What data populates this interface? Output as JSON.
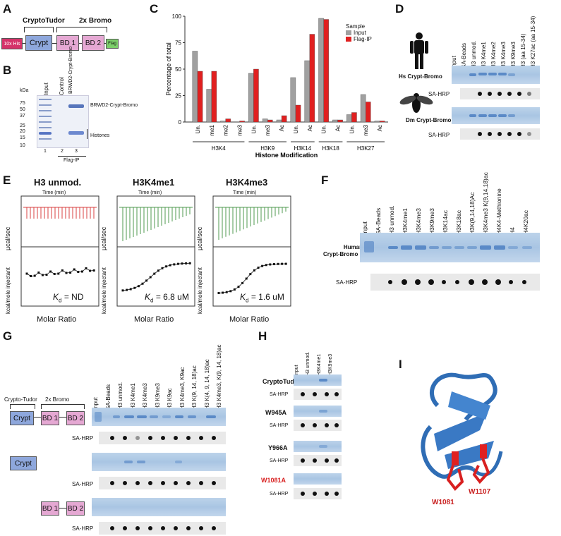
{
  "panel_letters": [
    "A",
    "B",
    "C",
    "D",
    "E",
    "F",
    "G",
    "H",
    "I"
  ],
  "a": {
    "header_left": "CryptoTudor",
    "header_right": "2x Bromo",
    "domains": [
      "10x His",
      "Crypt",
      "BD 1",
      "BD 2",
      "Flag"
    ]
  },
  "b": {
    "kda": "kDa",
    "markers": [
      "75",
      "50",
      "37",
      "25",
      "20",
      "15",
      "10"
    ],
    "lanes": [
      "Input",
      "Control",
      "BRWD2-Crypt-Bromo"
    ],
    "lane_numbers": [
      "1",
      "2",
      "3"
    ],
    "band_labels": [
      "BRWD2-Crypt-Bromo",
      "Histones"
    ],
    "footer": "Flag-IP"
  },
  "c": {
    "legend_title": "Sample",
    "legend": [
      "Input",
      "Flag-IP"
    ]
  },
  "chart_data": {
    "type": "bar",
    "title": "",
    "xlabel": "Histone Modification",
    "ylabel": "Percentage of total",
    "ylim": [
      0,
      100
    ],
    "yticks": [
      "0",
      "25",
      "50",
      "75",
      "100"
    ],
    "categories": [
      "Un.",
      "me1",
      "me2",
      "me3",
      "Un.",
      "me3",
      "Ac",
      "Un.",
      "Ac",
      "Un.",
      "Ac",
      "Un.",
      "me3",
      "Ac"
    ],
    "groups": [
      {
        "name": "H3K4",
        "n": 4
      },
      {
        "name": "H3K9",
        "n": 3
      },
      {
        "name": "H3K14",
        "n": 2
      },
      {
        "name": "H3K18",
        "n": 2
      },
      {
        "name": "H3K27",
        "n": 3
      }
    ],
    "series": [
      {
        "name": "Input",
        "color": "#a0a0a0",
        "values": [
          67,
          31,
          1,
          0,
          46,
          3,
          2,
          42,
          58,
          98,
          2,
          7,
          26,
          1
        ]
      },
      {
        "name": "Flag-IP",
        "color": "#e02020",
        "values": [
          48,
          48,
          3,
          1,
          50,
          2,
          6,
          16,
          83,
          97,
          2,
          9,
          19,
          1
        ]
      }
    ]
  },
  "d": {
    "lanes": [
      "Input",
      "SA-Beads",
      "H3 unmod.",
      "H3 K4me1",
      "H3 K4me2",
      "H3 K4me3",
      "H3 K9me3",
      "H3 (aa 15-34)",
      "H3 K27ac (aa 15-34)"
    ],
    "hs_label": "Hs Crypt-Bromo",
    "dm_label": "Dm Crypt-Bromo",
    "sa": "SA-HRP"
  },
  "e": {
    "titles": [
      "H3 unmod.",
      "H3K4me1",
      "H3K4me3"
    ],
    "time_label": "Time (min)",
    "y_top": "µcal/sec",
    "y_bottom": "kcal/mole injectant",
    "x_label": "Molar Ratio",
    "kd": [
      "= ND",
      "= 6.8 uM",
      "= 1.6 uM"
    ]
  },
  "f": {
    "lanes": [
      "Input",
      "SA-Beads",
      "H3 unmod.",
      "H3K4me1",
      "H3K4me3",
      "H3K9me3",
      "H3K14ac",
      "H3K18ac",
      "H3K(9,14,18)Ac",
      "H3K4me3 K(9,14,18)ac",
      "H4K4-Methionine",
      "H4",
      "H4K20ac"
    ],
    "label_line1": "Human",
    "label_line2": "Crypt-Bromo",
    "sa": "SA-HRP"
  },
  "g": {
    "header_left": "Crypto-Tudor",
    "header_right": "2x Bromo",
    "domains": [
      "Crypt",
      "BD 1",
      "BD 2"
    ],
    "lanes": [
      "Input",
      "SA-Beads",
      "H3 unmod.",
      "H3 K4me1",
      "H3 K4me3",
      "H3 K9me3",
      "H3 K9ac",
      "H3 K4me3, K9ac",
      "H3 K(9, 14, 18)ac",
      "H3 K(4, 9, 14, 18)ac",
      "H3 K4me3, K(9, 14, 18)ac"
    ],
    "sa": "SA-HRP"
  },
  "h": {
    "lanes": [
      "Input",
      "H3 unmod.",
      "H3K4me1",
      "H3K9me3"
    ],
    "rows": [
      "CryptoTudor",
      "W945A",
      "Y966A",
      "W1081A"
    ],
    "sa": "SA-HRP"
  },
  "i": {
    "residues": [
      "W1081",
      "W1107"
    ]
  }
}
